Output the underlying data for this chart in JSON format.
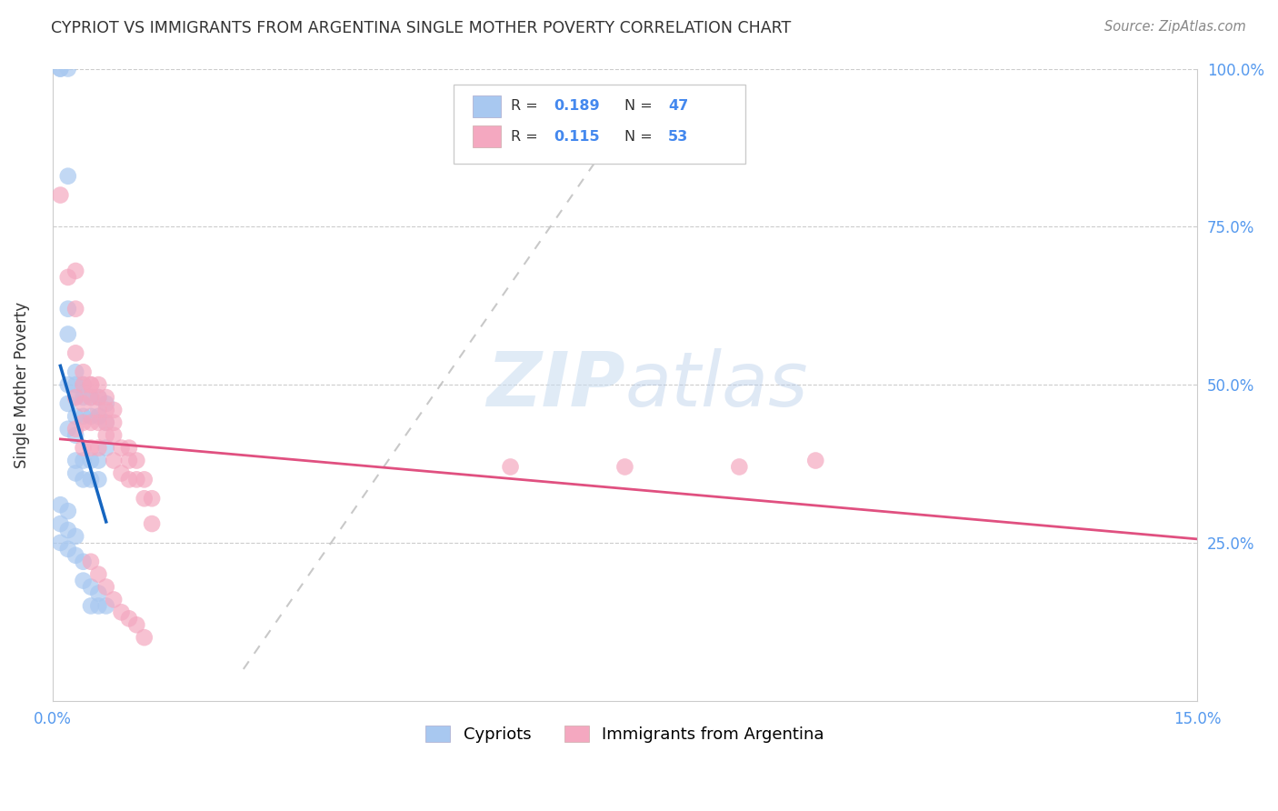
{
  "title": "CYPRIOT VS IMMIGRANTS FROM ARGENTINA SINGLE MOTHER POVERTY CORRELATION CHART",
  "source": "Source: ZipAtlas.com",
  "ylabel": "Single Mother Poverty",
  "xlim": [
    0,
    0.15
  ],
  "ylim": [
    0,
    1.0
  ],
  "blue_color": "#A8C8F0",
  "pink_color": "#F4A8C0",
  "blue_line_color": "#1565C0",
  "pink_line_color": "#E05080",
  "grid_color": "#CCCCCC",
  "background_color": "#FFFFFF",
  "R1": "0.189",
  "N1": "47",
  "R2": "0.115",
  "N2": "53",
  "blue_scatter_x": [
    0.001,
    0.001,
    0.002,
    0.002,
    0.002,
    0.002,
    0.002,
    0.002,
    0.002,
    0.003,
    0.003,
    0.003,
    0.003,
    0.003,
    0.003,
    0.003,
    0.004,
    0.004,
    0.004,
    0.004,
    0.004,
    0.005,
    0.005,
    0.005,
    0.005,
    0.006,
    0.006,
    0.006,
    0.006,
    0.007,
    0.007,
    0.007,
    0.001,
    0.001,
    0.001,
    0.002,
    0.002,
    0.002,
    0.003,
    0.003,
    0.004,
    0.004,
    0.005,
    0.005,
    0.006,
    0.006,
    0.007
  ],
  "blue_scatter_y": [
    1.0,
    1.0,
    1.0,
    0.83,
    0.62,
    0.58,
    0.5,
    0.47,
    0.43,
    0.52,
    0.5,
    0.48,
    0.45,
    0.42,
    0.38,
    0.36,
    0.5,
    0.48,
    0.45,
    0.38,
    0.35,
    0.48,
    0.45,
    0.38,
    0.35,
    0.48,
    0.45,
    0.38,
    0.35,
    0.47,
    0.44,
    0.4,
    0.31,
    0.28,
    0.25,
    0.3,
    0.27,
    0.24,
    0.26,
    0.23,
    0.22,
    0.19,
    0.18,
    0.15,
    0.17,
    0.15,
    0.15
  ],
  "pink_scatter_x": [
    0.001,
    0.002,
    0.003,
    0.003,
    0.003,
    0.003,
    0.004,
    0.004,
    0.004,
    0.004,
    0.005,
    0.005,
    0.005,
    0.005,
    0.006,
    0.006,
    0.006,
    0.006,
    0.007,
    0.007,
    0.007,
    0.008,
    0.008,
    0.008,
    0.009,
    0.009,
    0.01,
    0.01,
    0.01,
    0.011,
    0.011,
    0.012,
    0.012,
    0.013,
    0.013,
    0.004,
    0.005,
    0.006,
    0.007,
    0.008,
    0.06,
    0.075,
    0.09,
    0.1,
    0.003,
    0.005,
    0.006,
    0.007,
    0.008,
    0.009,
    0.01,
    0.011,
    0.012
  ],
  "pink_scatter_y": [
    0.8,
    0.67,
    0.62,
    0.55,
    0.48,
    0.43,
    0.5,
    0.47,
    0.44,
    0.4,
    0.5,
    0.48,
    0.44,
    0.4,
    0.48,
    0.46,
    0.44,
    0.4,
    0.46,
    0.44,
    0.42,
    0.44,
    0.42,
    0.38,
    0.4,
    0.36,
    0.4,
    0.38,
    0.35,
    0.38,
    0.35,
    0.35,
    0.32,
    0.32,
    0.28,
    0.52,
    0.5,
    0.5,
    0.48,
    0.46,
    0.37,
    0.37,
    0.37,
    0.38,
    0.68,
    0.22,
    0.2,
    0.18,
    0.16,
    0.14,
    0.13,
    0.12,
    0.1
  ]
}
